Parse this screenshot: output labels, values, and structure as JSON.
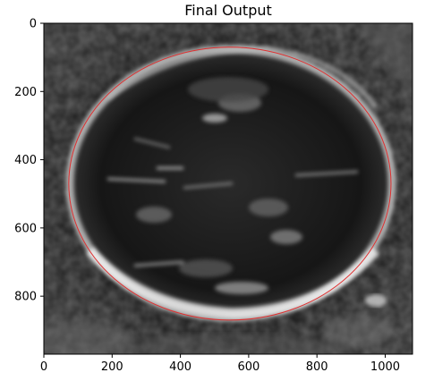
{
  "figure": {
    "title": "Final Output"
  },
  "chart_data": {
    "type": "image",
    "title": "Final Output",
    "xlabel": "",
    "ylabel": "",
    "xlim": [
      0,
      1080
    ],
    "ylim": [
      970,
      0
    ],
    "x_ticks": [
      0,
      200,
      400,
      600,
      800,
      1000
    ],
    "y_ticks": [
      0,
      200,
      400,
      600,
      800
    ],
    "x_tick_labels": [
      "0",
      "200",
      "400",
      "600",
      "800",
      "1000"
    ],
    "y_tick_labels": [
      "0",
      "200",
      "400",
      "600",
      "800"
    ],
    "fitted_ellipse": {
      "center_x": 545,
      "center_y": 470,
      "semi_axis_x": 472,
      "semi_axis_y": 400,
      "color": "#e03030"
    }
  },
  "colors": {
    "background": "#ffffff",
    "image_dark": "#141414",
    "skull_ring": "#e8e8e8",
    "ellipse": "#e03030"
  }
}
